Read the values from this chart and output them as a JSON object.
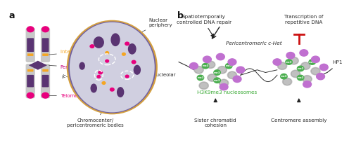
{
  "panel_a_label": "a",
  "panel_b_label": "b",
  "bg_color": "#ffffff",
  "chromosome_color_gray": "#c8c8c8",
  "chromosome_color_purple": "#5a3472",
  "chromosome_color_magenta": "#e8007d",
  "chromosome_color_orange": "#f5a623",
  "nucleus_fill": "#d0cfe0",
  "nucleus_border_outer": "#d4a040",
  "nucleus_border_inner": "#7060a0",
  "nucleolus_color": "#7060a8",
  "chromocenter_color": "#5a3472",
  "chromocenter_small_color": "#e8007d",
  "chromocenter_orange": "#f5a623",
  "label_interspersed": "#f5a623",
  "label_pericentromeric": "#c8007d",
  "label_telomeric": "#e8007d",
  "label_black": "#2a2a2a",
  "arrow_color": "#2a2a2a",
  "inhibit_color": "#cc1111",
  "nucleosome_gray": "#c0c0c0",
  "nucleosome_green": "#4caf50",
  "nucleosome_purple": "#c070d0",
  "hp1_color": "#c070d0",
  "green_label": "#3aaa35",
  "text_annotations": {
    "nuclear_periphery": "Nuclear\nperiphery",
    "perinucleolar": "Perinucleolar",
    "chromocenter": "Chromocenter/\npericentromeric bodies",
    "interspersed": "Interspersed (i-Het)",
    "pericentromeric": "Pericentromeric",
    "c_het": "(c-Het)",
    "telomeric": "Telomeric",
    "spatiotemporally": "Spatiotemporally\ncontrolled DNA repair",
    "transcription": "Transcription of\nrepetitive DNA",
    "pericentromeric_chet": "Pericentromeric c-Het",
    "h3k9me3": "H3K9me3 nucleosomes",
    "sister_chromatid": "Sister chromatid\ncohesion",
    "centromere": "Centromere assembly",
    "hp1": "HP1",
    "me3": "me3"
  }
}
